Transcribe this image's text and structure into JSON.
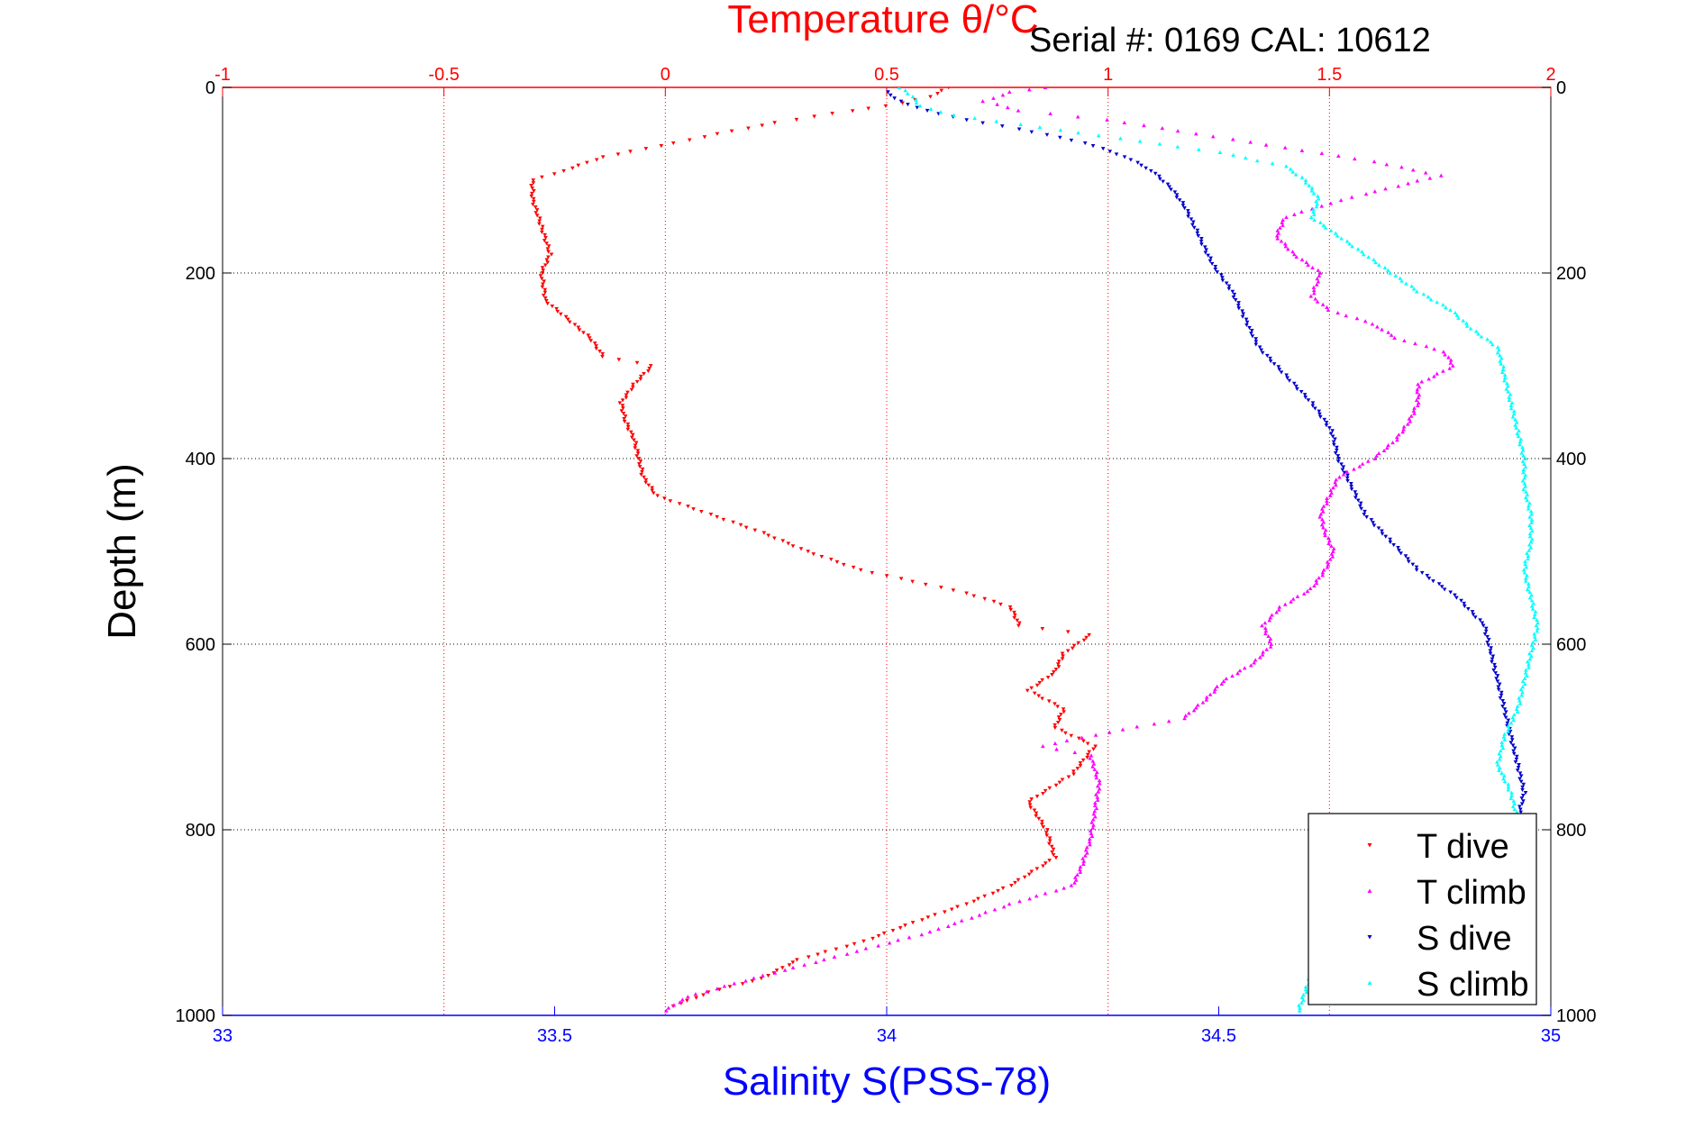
{
  "chart_data": {
    "type": "scatter",
    "title": "",
    "annotation": "Serial #: 0169 CAL: 10612",
    "top_axis": {
      "label": "Temperature θ/°C",
      "range": [
        -1,
        2
      ],
      "ticks": [
        -1,
        -0.5,
        0,
        0.5,
        1,
        1.5,
        2
      ],
      "tick_labels": [
        "-1",
        "-0.5",
        "0",
        "0.5",
        "1",
        "1.5",
        "2"
      ],
      "color": "#ff0000"
    },
    "bottom_axis": {
      "label": "Salinity S(PSS-78)",
      "range": [
        33,
        35
      ],
      "ticks": [
        33,
        33.5,
        34,
        34.5,
        35
      ],
      "tick_labels": [
        "33",
        "33.5",
        "34",
        "34.5",
        "35"
      ],
      "color": "#0000ff"
    },
    "y_axis": {
      "label": "Depth (m)",
      "range": [
        0,
        1000
      ],
      "reversed": true,
      "ticks": [
        0,
        200,
        400,
        600,
        800,
        1000
      ],
      "tick_labels": [
        "0",
        "200",
        "400",
        "600",
        "800",
        "1000"
      ]
    },
    "grid": true,
    "legend": {
      "position": "bottom-right",
      "entries": [
        "T dive",
        "T climb",
        "S dive",
        "S climb"
      ]
    },
    "series": [
      {
        "name": "T dive",
        "axis": "top",
        "color": "#ff0000",
        "marker": "triangle-down",
        "points": [
          [
            0.64,
            0
          ],
          [
            0.6,
            10
          ],
          [
            0.5,
            20
          ],
          [
            0.38,
            28
          ],
          [
            0.25,
            38
          ],
          [
            0.12,
            50
          ],
          [
            0.02,
            60
          ],
          [
            -0.14,
            75
          ],
          [
            -0.23,
            90
          ],
          [
            -0.3,
            100
          ],
          [
            -0.3,
            120
          ],
          [
            -0.28,
            150
          ],
          [
            -0.26,
            180
          ],
          [
            -0.28,
            200
          ],
          [
            -0.27,
            230
          ],
          [
            -0.22,
            250
          ],
          [
            -0.17,
            270
          ],
          [
            -0.14,
            290
          ],
          [
            -0.03,
            300
          ],
          [
            -0.07,
            320
          ],
          [
            -0.1,
            340
          ],
          [
            -0.09,
            360
          ],
          [
            -0.07,
            380
          ],
          [
            -0.06,
            400
          ],
          [
            -0.05,
            420
          ],
          [
            -0.02,
            440
          ],
          [
            0.1,
            460
          ],
          [
            0.22,
            480
          ],
          [
            0.32,
            500
          ],
          [
            0.44,
            520
          ],
          [
            0.68,
            545
          ],
          [
            0.78,
            560
          ],
          [
            0.8,
            580
          ],
          [
            0.96,
            590
          ],
          [
            0.9,
            610
          ],
          [
            0.88,
            630
          ],
          [
            0.82,
            650
          ],
          [
            0.9,
            670
          ],
          [
            0.88,
            690
          ],
          [
            0.97,
            710
          ],
          [
            0.92,
            740
          ],
          [
            0.82,
            770
          ],
          [
            0.86,
            800
          ],
          [
            0.88,
            830
          ],
          [
            0.78,
            860
          ],
          [
            0.68,
            880
          ],
          [
            0.56,
            900
          ],
          [
            0.45,
            920
          ],
          [
            0.3,
            940
          ],
          [
            0.22,
            960
          ],
          [
            0.1,
            975
          ],
          [
            0.02,
            990
          ]
        ]
      },
      {
        "name": "T climb",
        "axis": "top",
        "color": "#ff00ff",
        "marker": "triangle-up",
        "points": [
          [
            0.0,
            995
          ],
          [
            0.05,
            980
          ],
          [
            0.2,
            960
          ],
          [
            0.36,
            940
          ],
          [
            0.6,
            910
          ],
          [
            0.78,
            880
          ],
          [
            0.92,
            860
          ],
          [
            0.94,
            840
          ],
          [
            0.96,
            810
          ],
          [
            0.97,
            780
          ],
          [
            0.98,
            750
          ],
          [
            0.96,
            720
          ],
          [
            0.85,
            710
          ],
          [
            1.0,
            695
          ],
          [
            1.17,
            680
          ],
          [
            1.22,
            660
          ],
          [
            1.26,
            640
          ],
          [
            1.33,
            620
          ],
          [
            1.37,
            600
          ],
          [
            1.35,
            580
          ],
          [
            1.39,
            560
          ],
          [
            1.46,
            540
          ],
          [
            1.49,
            520
          ],
          [
            1.51,
            500
          ],
          [
            1.49,
            480
          ],
          [
            1.48,
            460
          ],
          [
            1.5,
            440
          ],
          [
            1.52,
            420
          ],
          [
            1.6,
            400
          ],
          [
            1.65,
            380
          ],
          [
            1.68,
            360
          ],
          [
            1.7,
            340
          ],
          [
            1.7,
            320
          ],
          [
            1.78,
            300
          ],
          [
            1.76,
            285
          ],
          [
            1.65,
            270
          ],
          [
            1.6,
            255
          ],
          [
            1.5,
            240
          ],
          [
            1.46,
            225
          ],
          [
            1.48,
            200
          ],
          [
            1.42,
            180
          ],
          [
            1.38,
            160
          ],
          [
            1.4,
            140
          ],
          [
            1.5,
            125
          ],
          [
            1.58,
            115
          ],
          [
            1.75,
            95
          ],
          [
            1.6,
            80
          ],
          [
            1.4,
            65
          ],
          [
            1.2,
            50
          ],
          [
            1.0,
            35
          ],
          [
            0.8,
            25
          ],
          [
            0.72,
            15
          ],
          [
            0.78,
            5
          ],
          [
            0.86,
            0
          ]
        ]
      },
      {
        "name": "S dive",
        "axis": "bottom",
        "color": "#0000cc",
        "marker": "triangle-down",
        "points": [
          [
            34.0,
            5
          ],
          [
            34.02,
            15
          ],
          [
            34.06,
            25
          ],
          [
            34.12,
            35
          ],
          [
            34.2,
            45
          ],
          [
            34.3,
            60
          ],
          [
            34.36,
            75
          ],
          [
            34.4,
            90
          ],
          [
            34.43,
            110
          ],
          [
            34.45,
            130
          ],
          [
            34.47,
            160
          ],
          [
            34.49,
            190
          ],
          [
            34.52,
            220
          ],
          [
            34.54,
            250
          ],
          [
            34.56,
            280
          ],
          [
            34.6,
            310
          ],
          [
            34.64,
            340
          ],
          [
            34.67,
            370
          ],
          [
            34.68,
            400
          ],
          [
            34.7,
            430
          ],
          [
            34.72,
            460
          ],
          [
            34.76,
            490
          ],
          [
            34.8,
            520
          ],
          [
            34.86,
            550
          ],
          [
            34.9,
            580
          ],
          [
            34.91,
            610
          ],
          [
            34.92,
            640
          ],
          [
            34.93,
            670
          ],
          [
            34.94,
            700
          ],
          [
            34.95,
            730
          ],
          [
            34.96,
            760
          ],
          [
            34.95,
            790
          ]
        ]
      },
      {
        "name": "S climb",
        "axis": "bottom",
        "color": "#00ffff",
        "marker": "triangle-up",
        "points": [
          [
            34.62,
            995
          ],
          [
            34.63,
            975
          ],
          [
            34.64,
            955
          ],
          [
            34.95,
            790
          ],
          [
            34.94,
            760
          ],
          [
            34.92,
            730
          ],
          [
            34.93,
            700
          ],
          [
            34.95,
            670
          ],
          [
            34.96,
            640
          ],
          [
            34.97,
            610
          ],
          [
            34.98,
            580
          ],
          [
            34.97,
            550
          ],
          [
            34.96,
            520
          ],
          [
            34.97,
            490
          ],
          [
            34.97,
            460
          ],
          [
            34.96,
            430
          ],
          [
            34.96,
            400
          ],
          [
            34.95,
            370
          ],
          [
            34.94,
            340
          ],
          [
            34.93,
            310
          ],
          [
            34.92,
            280
          ],
          [
            34.88,
            260
          ],
          [
            34.85,
            240
          ],
          [
            34.8,
            220
          ],
          [
            34.76,
            200
          ],
          [
            34.72,
            180
          ],
          [
            34.68,
            160
          ],
          [
            34.64,
            140
          ],
          [
            34.65,
            120
          ],
          [
            34.63,
            100
          ],
          [
            34.6,
            85
          ],
          [
            34.5,
            70
          ],
          [
            34.35,
            55
          ],
          [
            34.2,
            40
          ],
          [
            34.1,
            30
          ],
          [
            34.05,
            20
          ],
          [
            34.04,
            10
          ],
          [
            34.02,
            0
          ]
        ]
      }
    ]
  }
}
